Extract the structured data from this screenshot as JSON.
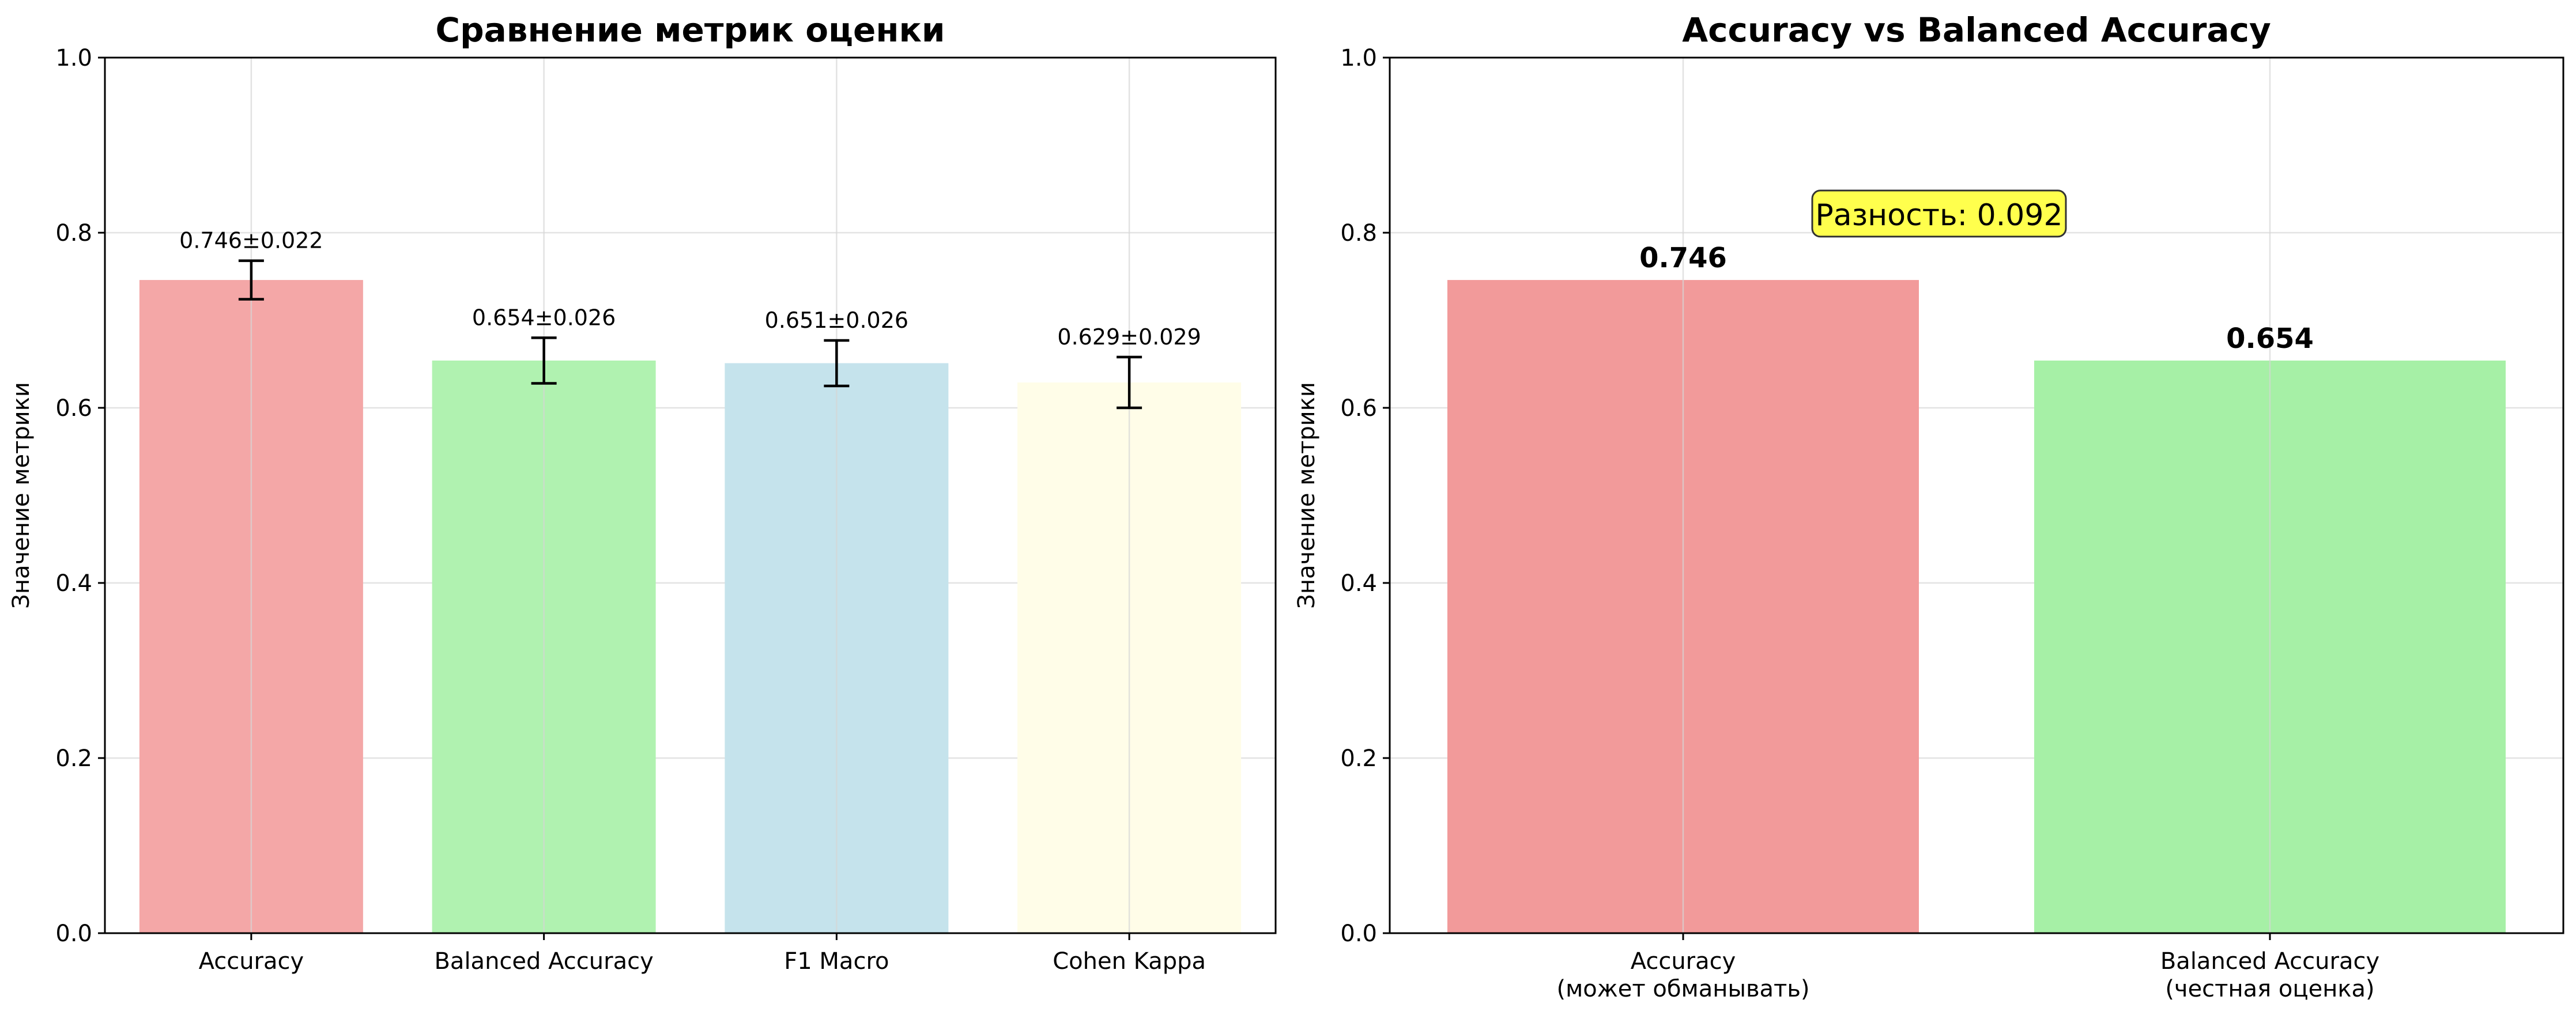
{
  "chart_data": [
    {
      "type": "bar",
      "title": "Сравнение метрик оценки",
      "xlabel": "",
      "ylabel": "Значение метрики",
      "ylim": [
        0,
        1.0
      ],
      "yticks": [
        "0.0",
        "0.2",
        "0.4",
        "0.6",
        "0.8",
        "1.0"
      ],
      "grid": true,
      "categories": [
        "Accuracy",
        "Balanced Accuracy",
        "F1 Macro",
        "Cohen Kappa"
      ],
      "values": [
        0.746,
        0.654,
        0.651,
        0.629
      ],
      "errors": [
        0.022,
        0.026,
        0.026,
        0.029
      ],
      "data_labels": [
        "0.746±0.022",
        "0.654±0.026",
        "0.651±0.026",
        "0.629±0.029"
      ],
      "colors": [
        "#f4a7a7",
        "#b0f2b0",
        "#c5e3ec",
        "#fffde8"
      ]
    },
    {
      "type": "bar",
      "title": "Accuracy vs Balanced Accuracy",
      "xlabel": "",
      "ylabel": "Значение метрики",
      "ylim": [
        0,
        1.0
      ],
      "yticks": [
        "0.0",
        "0.2",
        "0.4",
        "0.6",
        "0.8",
        "1.0"
      ],
      "grid": true,
      "categories": [
        [
          "Accuracy",
          "(может обманывать)"
        ],
        [
          "Balanced Accuracy",
          "(честная оценка)"
        ]
      ],
      "values": [
        0.746,
        0.654
      ],
      "data_labels": [
        "0.746",
        "0.654"
      ],
      "colors": [
        "#f29a9a",
        "#a6f0a6"
      ],
      "annotation": {
        "text": "Разность: 0.092",
        "at_value": 0.81,
        "background": "#ffff4d"
      }
    }
  ]
}
